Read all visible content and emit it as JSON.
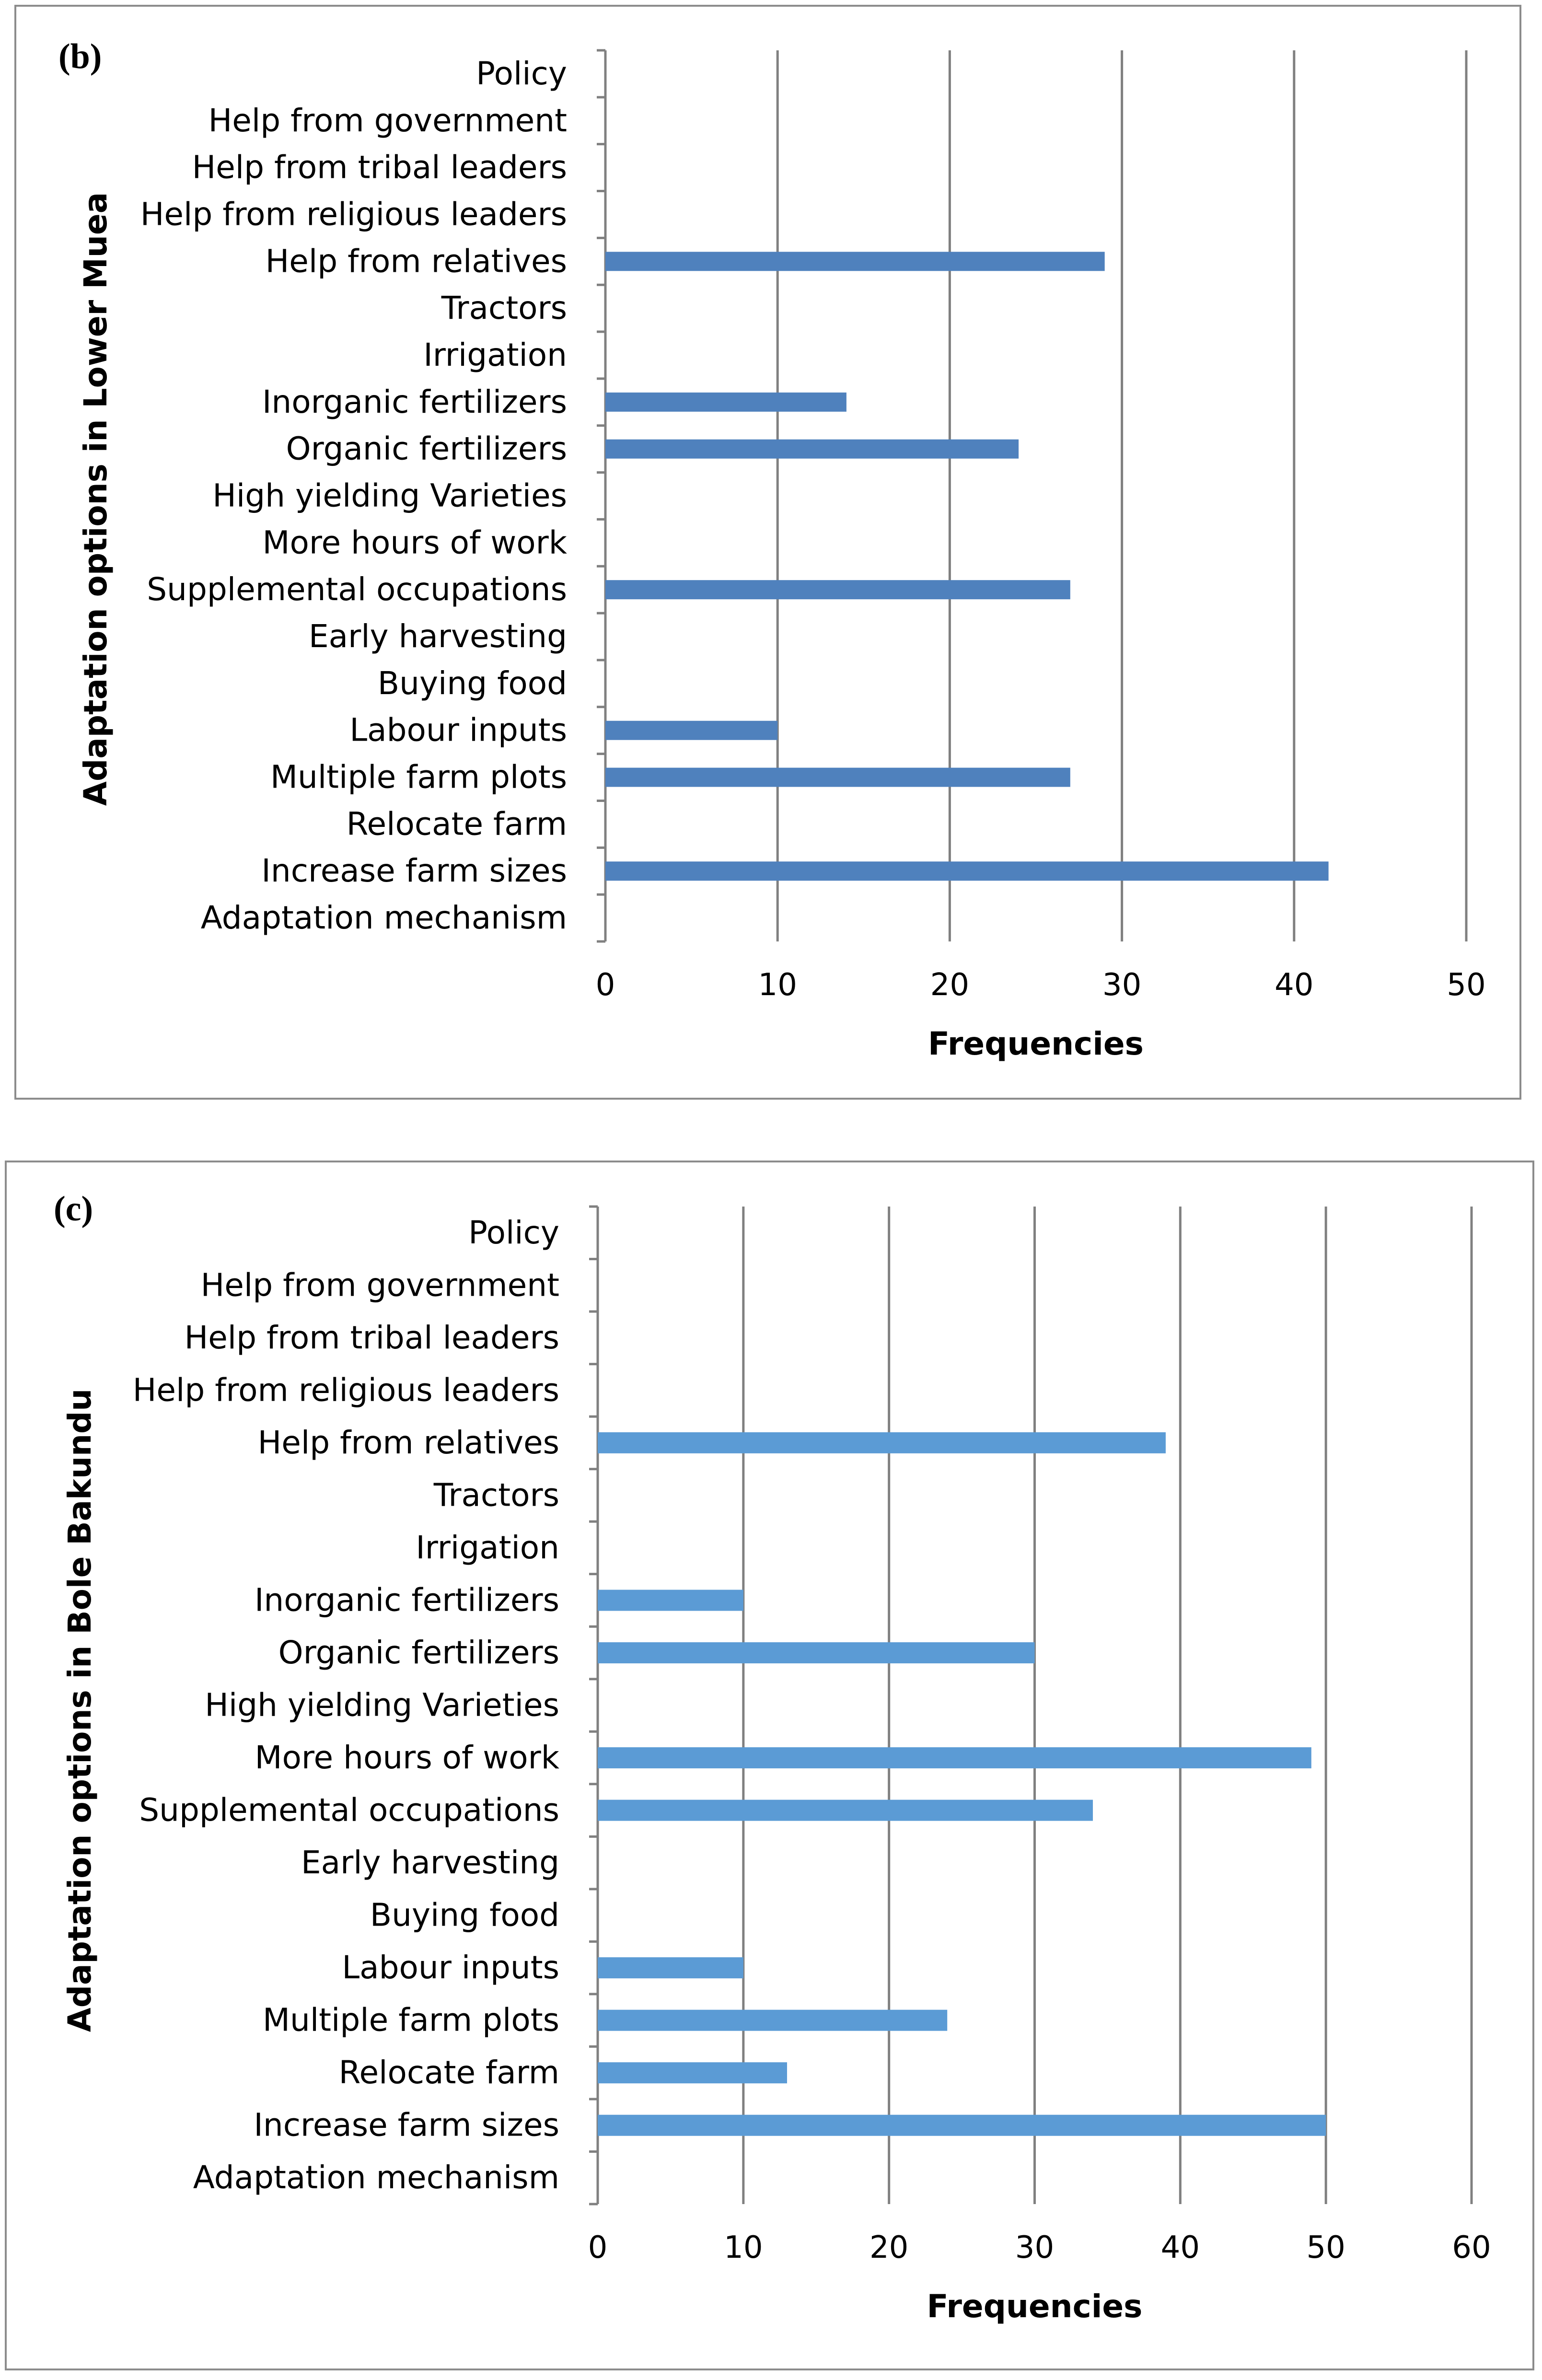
{
  "chart_data": [
    {
      "type": "bar",
      "orientation": "horizontal",
      "panel_label": "(b)",
      "title": "",
      "categories": [
        "Policy",
        "Help from government",
        "Help from tribal leaders",
        "Help from religious leaders",
        "Help from relatives",
        "Tractors",
        "Irrigation",
        "Inorganic fertilizers",
        "Organic fertilizers",
        "High yielding Varieties",
        "More hours of work",
        "Supplemental occupations",
        "Early harvesting",
        "Buying food",
        "Labour inputs",
        "Multiple farm plots",
        "Relocate farm",
        "Increase farm sizes",
        "Adaptation mechanism"
      ],
      "values": [
        0,
        0,
        0,
        0,
        29,
        0,
        0,
        14,
        24,
        0,
        0,
        27,
        0,
        0,
        10,
        27,
        0,
        42,
        0
      ],
      "xlabel": "Frequencies",
      "ylabel": "Adaptation options in Lower Muea",
      "xlim": [
        0,
        50
      ],
      "xticks": [
        "0",
        "10",
        "20",
        "30",
        "40",
        "50"
      ],
      "grid": "vertical",
      "bar_color": "#4f81bd"
    },
    {
      "type": "bar",
      "orientation": "horizontal",
      "panel_label": "(c)",
      "title": "",
      "categories": [
        "Policy",
        "Help from government",
        "Help from tribal leaders",
        "Help from religious leaders",
        "Help from relatives",
        "Tractors",
        "Irrigation",
        "Inorganic fertilizers",
        "Organic fertilizers",
        "High yielding Varieties",
        "More hours of work",
        "Supplemental occupations",
        "Early harvesting",
        "Buying food",
        "Labour inputs",
        "Multiple farm plots",
        "Relocate farm",
        "Increase farm sizes",
        "Adaptation mechanism"
      ],
      "values": [
        0,
        0,
        0,
        0,
        39,
        0,
        0,
        10,
        30,
        0,
        49,
        34,
        0,
        0,
        10,
        24,
        13,
        50,
        0
      ],
      "xlabel": "Frequencies",
      "ylabel": "Adaptation options in Bole Bakundu",
      "xlim": [
        0,
        60
      ],
      "xticks": [
        "0",
        "10",
        "20",
        "30",
        "40",
        "50",
        "60"
      ],
      "grid": "vertical",
      "bar_color": "#5b9bd5"
    }
  ]
}
